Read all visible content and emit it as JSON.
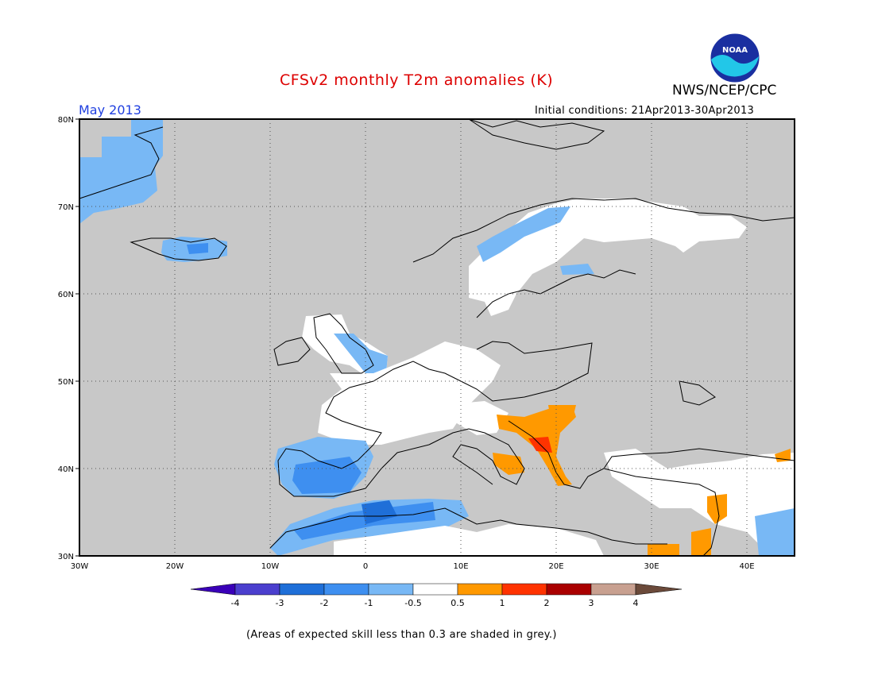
{
  "header": {
    "title": "CFSv2 monthly T2m anomalies (K)",
    "agency": "NWS/NCEP/CPC",
    "logo_text": "NOAA",
    "month": "May 2013",
    "initial_conditions": "Initial conditions: 21Apr2013-30Apr2013"
  },
  "map": {
    "region": "Europe",
    "lon_range": [
      -30,
      45
    ],
    "lat_range": [
      30,
      80
    ],
    "lat_ticks": [
      "80N",
      "70N",
      "60N",
      "50N",
      "40N",
      "30N"
    ],
    "lon_ticks": [
      "30W",
      "20W",
      "10W",
      "0",
      "10E",
      "20E",
      "30E",
      "40E"
    ],
    "gridlines": "dotted",
    "skill_mask_color": "#c8c8c8"
  },
  "colorbar": {
    "labels": [
      "-4",
      "-3",
      "-2",
      "-1",
      "-0.5",
      "0.5",
      "1",
      "2",
      "3",
      "4"
    ],
    "colors": [
      "#3a00b8",
      "#4b3fce",
      "#1f6fd8",
      "#3e8ff0",
      "#78b8f5",
      "#ffffff",
      "#ff9900",
      "#ff3300",
      "#aa0000",
      "#c8a090",
      "#6b4a3a"
    ]
  },
  "footnote": "(Areas of expected skill less than 0.3 are shaded in grey.)"
}
